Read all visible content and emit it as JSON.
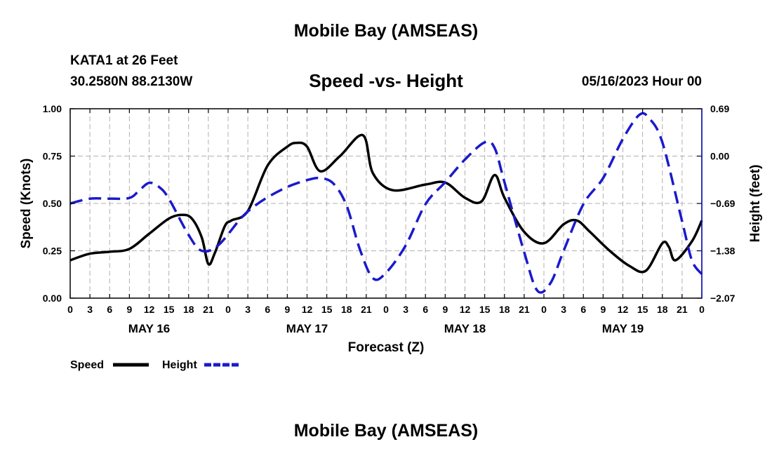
{
  "header": {
    "title": "Mobile Bay (AMSEAS)",
    "station": "KATA1 at 26 Feet",
    "coords": "30.2580N  88.2130W",
    "subtitle": "Speed -vs- Height",
    "datetime": "05/16/2023 Hour 00",
    "footer_title": "Mobile Bay (AMSEAS)"
  },
  "colors": {
    "speed": "#000000",
    "height": "#1a1acc",
    "grid": "#b0b0b0"
  },
  "chart_data": {
    "type": "line",
    "title": "Speed -vs- Height",
    "xlabel": "Forecast (Z)",
    "ylabel": "Speed (Knots)",
    "y2label": "Height (feet)",
    "xlim": [
      0,
      96
    ],
    "ylim": [
      0,
      1
    ],
    "y2lim": [
      -2.07,
      0.69
    ],
    "x_ticks": [
      0,
      3,
      6,
      9,
      12,
      15,
      18,
      21,
      24,
      27,
      30,
      33,
      36,
      39,
      42,
      45,
      48,
      51,
      54,
      57,
      60,
      63,
      66,
      69,
      72,
      75,
      78,
      81,
      84,
      87,
      90,
      93,
      96
    ],
    "x_tick_labels": [
      "0",
      "3",
      "6",
      "9",
      "12",
      "15",
      "18",
      "21",
      "0",
      "3",
      "6",
      "9",
      "12",
      "15",
      "18",
      "21",
      "0",
      "3",
      "6",
      "9",
      "12",
      "15",
      "18",
      "21",
      "0",
      "3",
      "6",
      "9",
      "12",
      "15",
      "18",
      "21",
      "0"
    ],
    "day_labels": [
      {
        "label": "MAY 16",
        "x": 12
      },
      {
        "label": "MAY 17",
        "x": 36
      },
      {
        "label": "MAY 18",
        "x": 60
      },
      {
        "label": "MAY 19",
        "x": 84
      }
    ],
    "y_ticks": [
      0,
      0.25,
      0.5,
      0.75,
      1.0
    ],
    "y_tick_labels": [
      "0.00",
      "0.25",
      "0.50",
      "0.75",
      "1.00"
    ],
    "y2_ticks": [
      -2.07,
      -1.38,
      -0.69,
      0.0,
      0.69
    ],
    "y2_tick_labels": [
      "−2.07",
      "−1.38",
      "−0.69",
      "0.00",
      "0.69"
    ],
    "legend": [
      {
        "label": "Speed",
        "series": "speed"
      },
      {
        "label": "Height",
        "series": "height"
      }
    ],
    "series": [
      {
        "name": "Speed",
        "axis": "left",
        "style": "solid",
        "points": [
          [
            0,
            0.2
          ],
          [
            3,
            0.235
          ],
          [
            6,
            0.245
          ],
          [
            9,
            0.26
          ],
          [
            12,
            0.34
          ],
          [
            15,
            0.42
          ],
          [
            17,
            0.44
          ],
          [
            18.5,
            0.42
          ],
          [
            20,
            0.32
          ],
          [
            21,
            0.18
          ],
          [
            22,
            0.24
          ],
          [
            23.5,
            0.38
          ],
          [
            24.5,
            0.41
          ],
          [
            27,
            0.46
          ],
          [
            30,
            0.7
          ],
          [
            33,
            0.8
          ],
          [
            34.5,
            0.82
          ],
          [
            36,
            0.8
          ],
          [
            38,
            0.67
          ],
          [
            41,
            0.75
          ],
          [
            44.5,
            0.86
          ],
          [
            46,
            0.66
          ],
          [
            49,
            0.57
          ],
          [
            54,
            0.6
          ],
          [
            57,
            0.61
          ],
          [
            60,
            0.53
          ],
          [
            62.5,
            0.51
          ],
          [
            64.5,
            0.65
          ],
          [
            66,
            0.53
          ],
          [
            69,
            0.35
          ],
          [
            72,
            0.29
          ],
          [
            75,
            0.39
          ],
          [
            77,
            0.41
          ],
          [
            79,
            0.35
          ],
          [
            82,
            0.25
          ],
          [
            85,
            0.17
          ],
          [
            87.5,
            0.145
          ],
          [
            90,
            0.29
          ],
          [
            91,
            0.27
          ],
          [
            92,
            0.2
          ],
          [
            94.5,
            0.3
          ],
          [
            96,
            0.41
          ]
        ]
      },
      {
        "name": "Height",
        "axis": "right",
        "style": "dashed",
        "points": [
          [
            0,
            -0.69
          ],
          [
            3,
            -0.62
          ],
          [
            6,
            -0.62
          ],
          [
            9,
            -0.61
          ],
          [
            10.5,
            -0.5
          ],
          [
            12,
            -0.39
          ],
          [
            13.5,
            -0.45
          ],
          [
            15,
            -0.62
          ],
          [
            18,
            -1.15
          ],
          [
            20,
            -1.38
          ],
          [
            22.5,
            -1.3
          ],
          [
            26,
            -0.9
          ],
          [
            28,
            -0.73
          ],
          [
            30,
            -0.6
          ],
          [
            33,
            -0.45
          ],
          [
            36,
            -0.35
          ],
          [
            38,
            -0.32
          ],
          [
            40,
            -0.4
          ],
          [
            42,
            -0.72
          ],
          [
            44,
            -1.35
          ],
          [
            46,
            -1.78
          ],
          [
            48,
            -1.7
          ],
          [
            51,
            -1.3
          ],
          [
            54,
            -0.7
          ],
          [
            57,
            -0.38
          ],
          [
            60,
            -0.05
          ],
          [
            63,
            0.2
          ],
          [
            64.5,
            0.12
          ],
          [
            66,
            -0.38
          ],
          [
            69,
            -1.4
          ],
          [
            71,
            -1.96
          ],
          [
            73,
            -1.85
          ],
          [
            75,
            -1.38
          ],
          [
            78,
            -0.7
          ],
          [
            81,
            -0.32
          ],
          [
            84,
            0.25
          ],
          [
            86.5,
            0.6
          ],
          [
            88,
            0.55
          ],
          [
            90,
            0.2
          ],
          [
            93,
            -0.95
          ],
          [
            94.5,
            -1.52
          ],
          [
            96,
            -1.72
          ]
        ]
      }
    ]
  }
}
